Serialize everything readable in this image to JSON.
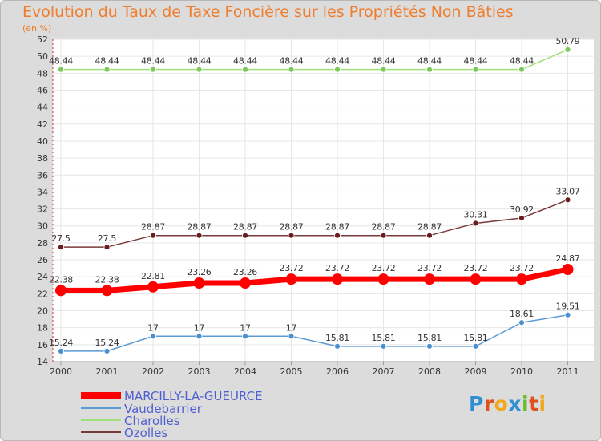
{
  "title": "Evolution du Taux de Taxe Foncière sur les Propriétés Non Bâties",
  "unit_label": "(en %)",
  "logo": {
    "text": "Proxiti",
    "letters": [
      "P",
      "r",
      "o",
      "x",
      "i",
      "t",
      "i"
    ],
    "colors": [
      "#2f8fd0",
      "#e0501f",
      "#f2a81d",
      "#2f8fd0",
      "#6dbb2d",
      "#e0501f",
      "#f2a81d"
    ]
  },
  "chart_data": {
    "type": "line",
    "title": "Evolution du Taux de Taxe Foncière sur les Propriétés Non Bâties",
    "ylabel": "(en %)",
    "xlabel": "",
    "x": [
      "2000",
      "2001",
      "2002",
      "2003",
      "2004",
      "2005",
      "2006",
      "2007",
      "2008",
      "2009",
      "2010",
      "2011"
    ],
    "ylim": [
      14,
      52
    ],
    "yticks": [
      14,
      16,
      18,
      20,
      22,
      24,
      26,
      28,
      30,
      32,
      34,
      36,
      38,
      40,
      42,
      44,
      46,
      48,
      50,
      52
    ],
    "series": [
      {
        "name": "MARCILLY-LA-GUEURCE",
        "color": "#ff0000",
        "marker": "#ff0000",
        "width": 7,
        "radius": 7,
        "values": [
          22.38,
          22.38,
          22.81,
          23.26,
          23.26,
          23.72,
          23.72,
          23.72,
          23.72,
          23.72,
          23.72,
          24.87
        ],
        "labels": [
          "22.38",
          "22.38",
          "22.81",
          "23.26",
          "23.26",
          "23.72",
          "23.72",
          "23.72",
          "23.72",
          "23.72",
          "23.72",
          "24.87"
        ]
      },
      {
        "name": "Vaudebarrier",
        "color": "#5b9bd5",
        "marker": "#4a90d0",
        "width": 1.5,
        "radius": 3.5,
        "values": [
          15.24,
          15.24,
          17,
          17,
          17,
          17,
          15.81,
          15.81,
          15.81,
          15.81,
          18.61,
          19.51
        ],
        "labels": [
          "15.24",
          "15.24",
          "17",
          "17",
          "17",
          "17",
          "15.81",
          "15.81",
          "15.81",
          "15.81",
          "18.61",
          "19.51"
        ]
      },
      {
        "name": "Charolles",
        "color": "#9ee07a",
        "marker": "#7cc85a",
        "width": 1.5,
        "radius": 3.5,
        "values": [
          48.44,
          48.44,
          48.44,
          48.44,
          48.44,
          48.44,
          48.44,
          48.44,
          48.44,
          48.44,
          48.44,
          50.79
        ],
        "labels": [
          "48.44",
          "48.44",
          "48.44",
          "48.44",
          "48.44",
          "48.44",
          "48.44",
          "48.44",
          "48.44",
          "48.44",
          "48.44",
          "50.79"
        ]
      },
      {
        "name": "Ozolles",
        "color": "#7a3b3b",
        "marker": "#6b1c1c",
        "width": 1.5,
        "radius": 3.5,
        "values": [
          27.5,
          27.5,
          28.87,
          28.87,
          28.87,
          28.87,
          28.87,
          28.87,
          28.87,
          30.31,
          30.92,
          33.07
        ],
        "labels": [
          "27.5",
          "27.5",
          "28.87",
          "28.87",
          "28.87",
          "28.87",
          "28.87",
          "28.87",
          "28.87",
          "30.31",
          "30.92",
          "33.07"
        ]
      }
    ],
    "legend": [
      "MARCILLY-LA-GUEURCE",
      "Vaudebarrier",
      "Charolles",
      "Ozolles"
    ],
    "grid": true
  }
}
